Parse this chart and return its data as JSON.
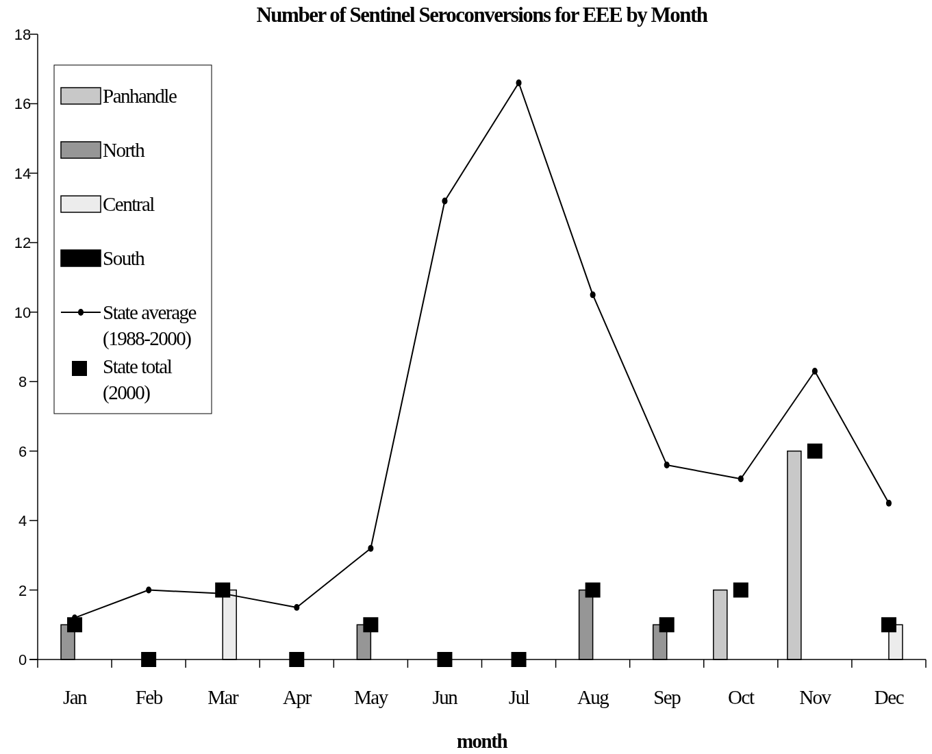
{
  "chart_data": {
    "type": "bar",
    "title": "Number of Sentinel Seroconversions for EEE by Month",
    "xlabel": "month",
    "categories": [
      "Jan",
      "Feb",
      "Mar",
      "Apr",
      "May",
      "Jun",
      "Jul",
      "Aug",
      "Sep",
      "Oct",
      "Nov",
      "Dec"
    ],
    "series": [
      {
        "name": "Panhandle",
        "color": "#c8c8c8",
        "values": [
          0,
          0,
          0,
          0,
          0,
          0,
          0,
          0,
          0,
          2,
          6,
          0
        ]
      },
      {
        "name": "North",
        "color": "#969696",
        "values": [
          1,
          0,
          0,
          0,
          1,
          0,
          0,
          2,
          1,
          0,
          0,
          0
        ]
      },
      {
        "name": "Central",
        "color": "#ececec",
        "values": [
          0,
          0,
          2,
          0,
          0,
          0,
          0,
          0,
          0,
          0,
          0,
          1
        ]
      },
      {
        "name": "South",
        "color": "#000000",
        "values": [
          0,
          0,
          0,
          0,
          0,
          0,
          0,
          0,
          0,
          0,
          0,
          0
        ]
      },
      {
        "name": "State average (1988-2000)",
        "type": "line",
        "color": "#000000",
        "marker": "circle",
        "values": [
          1.2,
          2.0,
          1.9,
          1.5,
          3.2,
          13.2,
          16.6,
          10.5,
          5.6,
          5.2,
          8.3,
          4.5
        ]
      },
      {
        "name": "State total (2000)",
        "type": "scatter",
        "color": "#000000",
        "marker": "square",
        "values": [
          1,
          0,
          2,
          0,
          1,
          0,
          0,
          2,
          1,
          2,
          6,
          1
        ]
      }
    ],
    "ylim": [
      0,
      18
    ],
    "yticks": [
      0,
      2,
      4,
      6,
      8,
      10,
      12,
      14,
      16,
      18
    ],
    "grid": false,
    "legend": "top left"
  }
}
